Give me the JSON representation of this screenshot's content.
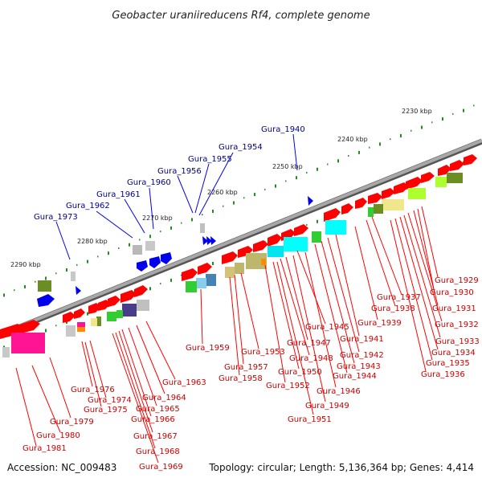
{
  "title": "Geobacter uraniireducens Rf4, complete genome",
  "footer": {
    "accession": "Accession: NC_009483",
    "summary": "Topology: circular; Length: 5,136,364 bp; Genes: 4,414"
  },
  "ticks": [
    {
      "label": "2230 kbp"
    },
    {
      "label": "2240 kbp"
    },
    {
      "label": "2250 kbp"
    },
    {
      "label": "2260 kbp"
    },
    {
      "label": "2270 kbp"
    },
    {
      "label": "2280 kbp"
    },
    {
      "label": "2290 kbp"
    }
  ],
  "genes_top": [
    {
      "name": "Gura_1940"
    },
    {
      "name": "Gura_1954"
    },
    {
      "name": "Gura_1955"
    },
    {
      "name": "Gura_1956"
    },
    {
      "name": "Gura_1960"
    },
    {
      "name": "Gura_1961"
    },
    {
      "name": "Gura_1962"
    },
    {
      "name": "Gura_1973"
    }
  ],
  "genes_bottom": [
    {
      "name": "Gura_1929"
    },
    {
      "name": "Gura_1930"
    },
    {
      "name": "Gura_1931"
    },
    {
      "name": "Gura_1932"
    },
    {
      "name": "Gura_1933"
    },
    {
      "name": "Gura_1934"
    },
    {
      "name": "Gura_1935"
    },
    {
      "name": "Gura_1936"
    },
    {
      "name": "Gura_1937"
    },
    {
      "name": "Gura_1938"
    },
    {
      "name": "Gura_1939"
    },
    {
      "name": "Gura_1941"
    },
    {
      "name": "Gura_1942"
    },
    {
      "name": "Gura_1943"
    },
    {
      "name": "Gura_1944"
    },
    {
      "name": "Gura_1945"
    },
    {
      "name": "Gura_1946"
    },
    {
      "name": "Gura_1947"
    },
    {
      "name": "Gura_1948"
    },
    {
      "name": "Gura_1949"
    },
    {
      "name": "Gura_1950"
    },
    {
      "name": "Gura_1951"
    },
    {
      "name": "Gura_1952"
    },
    {
      "name": "Gura_1953"
    },
    {
      "name": "Gura_1957"
    },
    {
      "name": "Gura_1958"
    },
    {
      "name": "Gura_1959"
    },
    {
      "name": "Gura_1963"
    },
    {
      "name": "Gura_1964"
    },
    {
      "name": "Gura_1965"
    },
    {
      "name": "Gura_1966"
    },
    {
      "name": "Gura_1967"
    },
    {
      "name": "Gura_1968"
    },
    {
      "name": "Gura_1969"
    },
    {
      "name": "Gura_1974"
    },
    {
      "name": "Gura_1975"
    },
    {
      "name": "Gura_1976"
    },
    {
      "name": "Gura_1979"
    },
    {
      "name": "Gura_1980"
    },
    {
      "name": "Gura_1981"
    }
  ],
  "colors": {
    "backbone": "#8c8c8c",
    "gene_red": "#ff0000",
    "gene_blue": "#0000ee",
    "label_red": "#cc0000",
    "label_blue": "#00008b",
    "tick_green": "#228b22"
  }
}
